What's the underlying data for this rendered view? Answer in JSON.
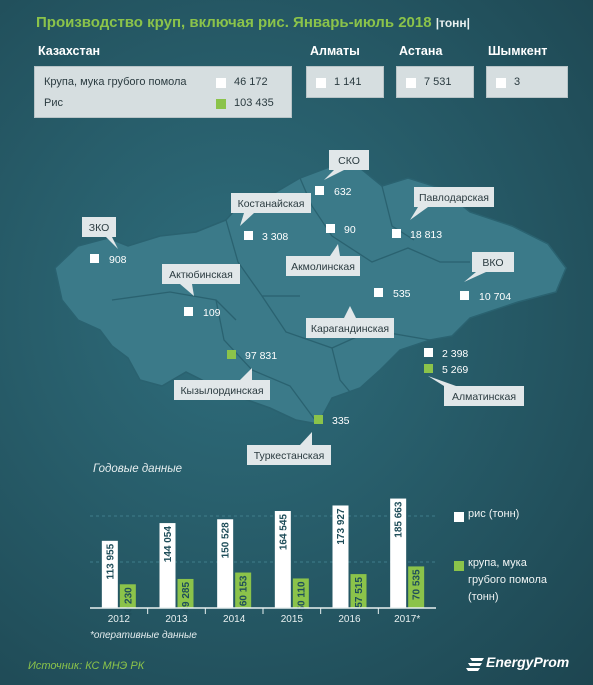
{
  "title": "Производство круп, включая рис. Январь-июль 2018",
  "title_unit": "|тонн|",
  "summary": {
    "kazakhstan": {
      "label": "Казахстан",
      "rows": [
        {
          "label": "Крупа, мука грубого помола",
          "value": "46 172"
        },
        {
          "label": "Рис",
          "value": "103 435"
        }
      ]
    },
    "almaty": {
      "label": "Алматы",
      "value": "1 141"
    },
    "astana": {
      "label": "Астана",
      "value": "7 531"
    },
    "shymkent": {
      "label": "Шымкент",
      "value": "3"
    }
  },
  "regions": [
    {
      "name": "ЗКО",
      "value": "908",
      "kind": "groats"
    },
    {
      "name": "Актюбинская",
      "value": "109",
      "kind": "groats"
    },
    {
      "name": "Костанайская",
      "value": "3 308",
      "kind": "groats"
    },
    {
      "name": "СКО",
      "value": "632",
      "kind": "groats"
    },
    {
      "name": "Акмолинская",
      "value": "90",
      "kind": "groats"
    },
    {
      "name": "Павлодарская",
      "value": "18 813",
      "kind": "groats"
    },
    {
      "name": "ВКО",
      "value": "10 704",
      "kind": "groats"
    },
    {
      "name": "Карагандинская",
      "value": "535",
      "kind": "groats"
    },
    {
      "name": "Кызылординская",
      "value": "97 831",
      "kind": "rice"
    },
    {
      "name": "Туркестанская",
      "value": "335",
      "kind": "rice"
    },
    {
      "name": "Алматинская",
      "values": [
        "2 398",
        "5 269"
      ]
    }
  ],
  "colors": {
    "groats": "#ffffff",
    "rice": "#8bc34a",
    "accent": "#8bc34a",
    "background": "#275c69"
  },
  "annual_title": "Годовые данные",
  "chart_data": {
    "type": "bar",
    "title": "Годовые данные",
    "categories": [
      "2012",
      "2013",
      "2014",
      "2015",
      "2016",
      "2017*"
    ],
    "series": [
      {
        "name": "рис (тонн)",
        "values": [
          113955,
          144054,
          150528,
          164545,
          173927,
          185663
        ],
        "labels": [
          "113 955",
          "144 054",
          "150 528",
          "164 545",
          "173 927",
          "185 663"
        ],
        "color": "#ffffff"
      },
      {
        "name": "крупа, мука грубого помола (тонн)",
        "values": [
          40230,
          49285,
          60153,
          50110,
          57515,
          70535
        ],
        "labels": [
          "40 230",
          "49 285",
          "60 153",
          "50 110",
          "57 515",
          "70 535"
        ],
        "color": "#8bc34a"
      }
    ],
    "ylim": [
      0,
      190000
    ],
    "legend": "right"
  },
  "legend": {
    "rice": "рис (тонн)",
    "groats_lines": [
      "крупа, мука",
      "грубого помола",
      "(тонн)"
    ]
  },
  "footnote": "*оперативные данные",
  "source": "Источник: КС МНЭ РК",
  "brand": "EnergyProm"
}
